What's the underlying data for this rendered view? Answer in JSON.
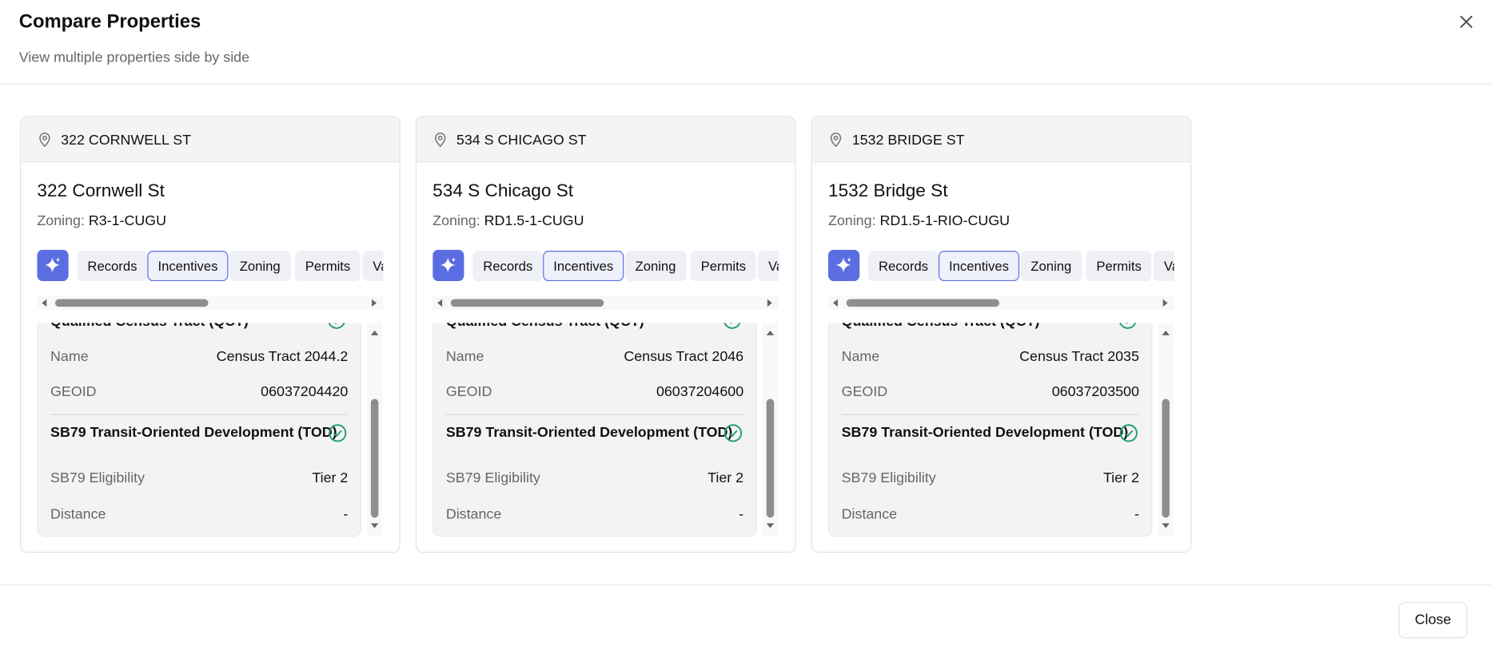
{
  "header": {
    "title": "Compare Properties",
    "subtitle": "View multiple properties side by side"
  },
  "properties": [
    {
      "address": "322 CORNWELL ST",
      "name": "322 Cornwell St",
      "zoning_label": "Zoning:",
      "zoning": "R3-1-CUGU",
      "tabs": [
        "Records",
        "Incentives",
        "Zoning",
        "Permits",
        "Va"
      ],
      "sections": [
        {
          "title": "Qualified Census Tract (QCT)",
          "rows": [
            [
              "Name",
              "Census Tract 2044.2"
            ],
            [
              "GEOID",
              "06037204420"
            ]
          ]
        },
        {
          "title": "SB79 Transit-Oriented Development (TOD)",
          "rows": [
            [
              "SB79 Eligibility",
              "Tier 2"
            ],
            [
              "Distance",
              "-"
            ]
          ]
        }
      ]
    },
    {
      "address": "534 S CHICAGO ST",
      "name": "534 S Chicago St",
      "zoning_label": "Zoning:",
      "zoning": "RD1.5-1-CUGU",
      "tabs": [
        "Records",
        "Incentives",
        "Zoning",
        "Permits",
        "Va"
      ],
      "sections": [
        {
          "title": "Qualified Census Tract (QCT)",
          "rows": [
            [
              "Name",
              "Census Tract 2046"
            ],
            [
              "GEOID",
              "06037204600"
            ]
          ]
        },
        {
          "title": "SB79 Transit-Oriented Development (TOD)",
          "rows": [
            [
              "SB79 Eligibility",
              "Tier 2"
            ],
            [
              "Distance",
              "-"
            ]
          ]
        }
      ]
    },
    {
      "address": "1532 BRIDGE ST",
      "name": "1532 Bridge St",
      "zoning_label": "Zoning:",
      "zoning": "RD1.5-1-RIO-CUGU",
      "tabs": [
        "Records",
        "Incentives",
        "Zoning",
        "Permits",
        "Va"
      ],
      "sections": [
        {
          "title": "Qualified Census Tract (QCT)",
          "rows": [
            [
              "Name",
              "Census Tract 2035"
            ],
            [
              "GEOID",
              "06037203500"
            ]
          ]
        },
        {
          "title": "SB79 Transit-Oriented Development (TOD)",
          "rows": [
            [
              "SB79 Eligibility",
              "Tier 2"
            ],
            [
              "Distance",
              "-"
            ]
          ]
        }
      ]
    }
  ],
  "footer": {
    "close": "Close"
  }
}
